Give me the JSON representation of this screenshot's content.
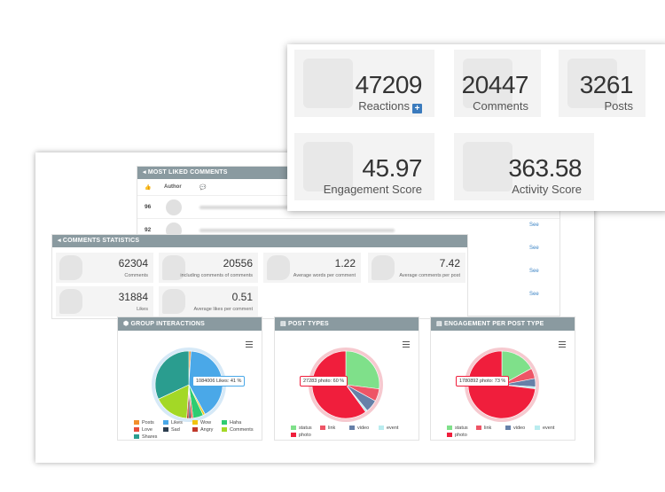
{
  "most_liked": {
    "title": "MOST LIKED COMMENTS",
    "col_author": "Author",
    "rows": [
      {
        "num": "96",
        "see": ""
      },
      {
        "num": "92",
        "see": "See"
      },
      {
        "num": "",
        "see": "See"
      },
      {
        "num": "",
        "see": "See"
      },
      {
        "num": "",
        "see": "See"
      },
      {
        "num": "",
        "see": "See"
      }
    ]
  },
  "comments_stats": {
    "title": "COMMENTS STATISTICS",
    "items": [
      {
        "value": "62304",
        "label": "Comments"
      },
      {
        "value": "20556",
        "label": "including comments of comments"
      },
      {
        "value": "1.22",
        "label": "Average words per comment"
      },
      {
        "value": "7.42",
        "label": "Average comments per post"
      },
      {
        "value": "31884",
        "label": "Likes"
      },
      {
        "value": "0.51",
        "label": "Average likes per comment"
      }
    ]
  },
  "kpis": [
    {
      "value": "47209",
      "label": "Reactions"
    },
    {
      "value": "20447",
      "label": "Comments"
    },
    {
      "value": "3261",
      "label": "Posts"
    },
    {
      "value": "45.97",
      "label": "Engagement Score"
    },
    {
      "value": "363.58",
      "label": "Activity Score"
    }
  ],
  "chart_data": [
    {
      "type": "pie",
      "title": "GROUP INTERACTIONS",
      "tooltip": "1084006 Likes: 41 %",
      "slices": [
        {
          "name": "Posts",
          "value": 1,
          "color": "#f28f2c"
        },
        {
          "name": "Likes",
          "value": 41,
          "color": "#4aa8e8"
        },
        {
          "name": "Wow",
          "value": 1,
          "color": "#f1c40f"
        },
        {
          "name": "Haha",
          "value": 5,
          "color": "#2ecc71"
        },
        {
          "name": "Love",
          "value": 1,
          "color": "#e74c3c"
        },
        {
          "name": "Sad",
          "value": 1,
          "color": "#2c3e50"
        },
        {
          "name": "Angry",
          "value": 1,
          "color": "#c0392b"
        },
        {
          "name": "Comments",
          "value": 17,
          "color": "#a3d826"
        },
        {
          "name": "Shares",
          "value": 32,
          "color": "#2a9d8f"
        }
      ]
    },
    {
      "type": "pie",
      "title": "POST TYPES",
      "tooltip": "27283 photo: 60 %",
      "slices": [
        {
          "name": "status",
          "value": 27,
          "color": "#7fe08a"
        },
        {
          "name": "link",
          "value": 6,
          "color": "#ee5566"
        },
        {
          "name": "video",
          "value": 6,
          "color": "#6680a8"
        },
        {
          "name": "event",
          "value": 1,
          "color": "#b9ecef"
        },
        {
          "name": "photo",
          "value": 60,
          "color": "#f01e3c"
        }
      ]
    },
    {
      "type": "pie",
      "title": "ENGAGEMENT PER POST TYPE",
      "tooltip": "1780892 photo: 73 %",
      "slices": [
        {
          "name": "status",
          "value": 17,
          "color": "#7fe08a"
        },
        {
          "name": "link",
          "value": 5,
          "color": "#ee5566"
        },
        {
          "name": "video",
          "value": 4,
          "color": "#6680a8"
        },
        {
          "name": "event",
          "value": 1,
          "color": "#b9ecef"
        },
        {
          "name": "photo",
          "value": 73,
          "color": "#f01e3c"
        }
      ]
    }
  ]
}
